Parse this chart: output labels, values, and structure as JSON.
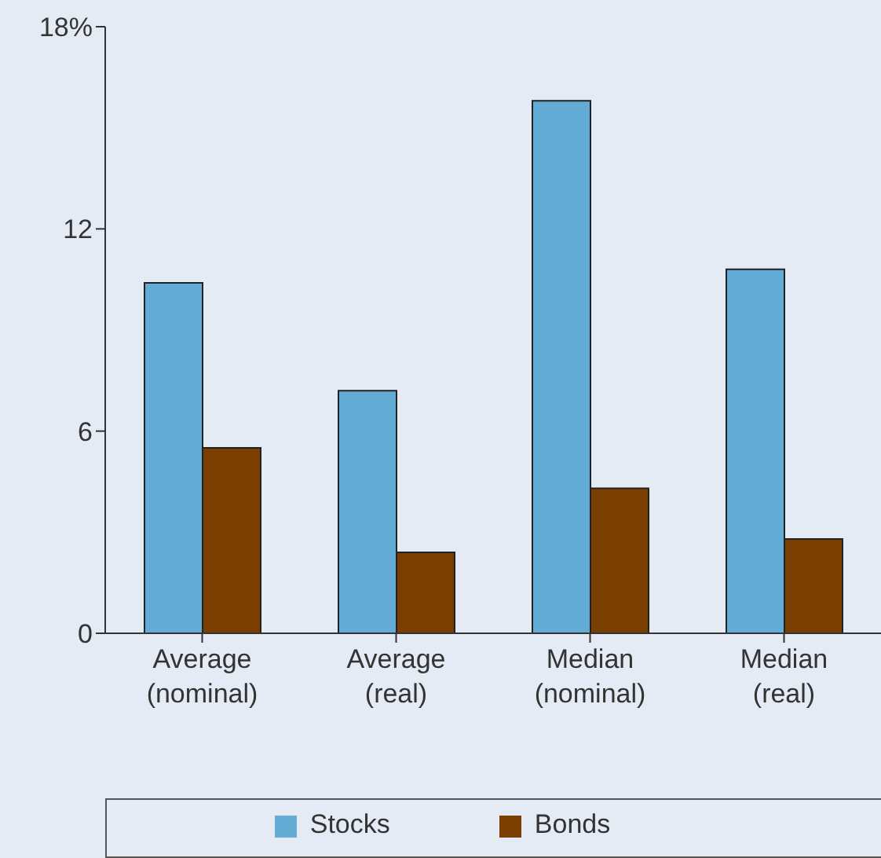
{
  "chart_data": {
    "type": "bar",
    "categories": [
      "Average (nominal)",
      "Average (real)",
      "Median (nominal)",
      "Median (real)"
    ],
    "series": [
      {
        "name": "Stocks",
        "color": "#62acd5",
        "values": [
          10.4,
          7.2,
          15.8,
          10.8
        ]
      },
      {
        "name": "Bonds",
        "color": "#7a3f00",
        "values": [
          5.5,
          2.4,
          4.3,
          2.8
        ]
      }
    ],
    "ylim": [
      0,
      18
    ],
    "yticks": [
      0,
      6,
      12,
      {
        "value": 18,
        "label": "18%"
      }
    ],
    "grid": false,
    "legend": "bottom"
  }
}
